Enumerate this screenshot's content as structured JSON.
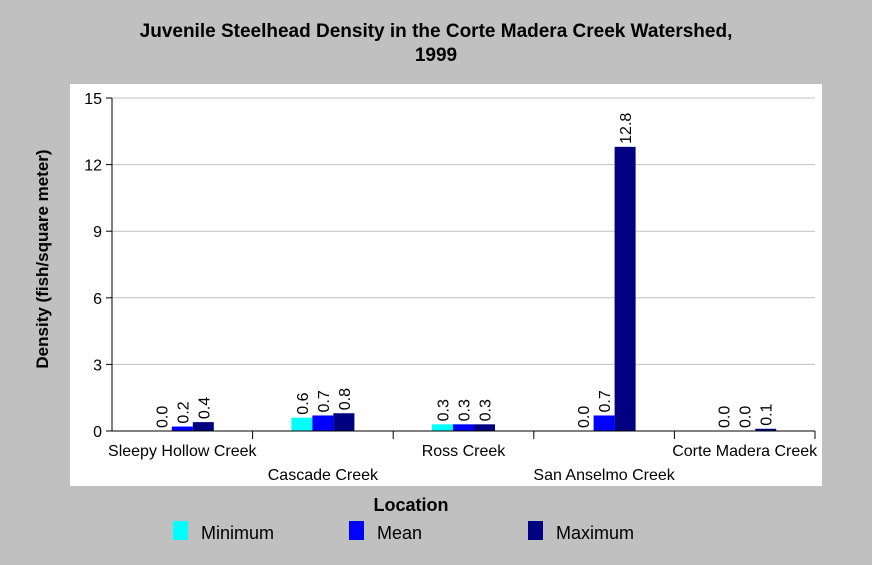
{
  "chart_data": {
    "type": "bar",
    "title": [
      "Juvenile Steelhead Density in the Corte Madera Creek Watershed,",
      "1999"
    ],
    "xlabel": "Location",
    "ylabel": "Density (fish/square meter)",
    "ylim": [
      0,
      15
    ],
    "yticks": [
      0,
      3,
      6,
      9,
      12,
      15
    ],
    "grid": true,
    "legend_position": "bottom",
    "categories": [
      "Sleepy Hollow Creek",
      "Cascade Creek",
      "Ross Creek",
      "San Anselmo Creek",
      "Corte Madera Creek"
    ],
    "series": [
      {
        "name": "Minimum",
        "color": "#00ffff",
        "values": [
          0.0,
          0.6,
          0.3,
          0.0,
          0.0
        ],
        "labels": [
          "0.0",
          "0.6",
          "0.3",
          "0.0",
          "0.0"
        ]
      },
      {
        "name": "Mean",
        "color": "#0000ff",
        "values": [
          0.2,
          0.7,
          0.3,
          0.7,
          0.0
        ],
        "labels": [
          "0.2",
          "0.7",
          "0.3",
          "0.7",
          "0.0"
        ]
      },
      {
        "name": "Maximum",
        "color": "#000080",
        "values": [
          0.4,
          0.8,
          0.3,
          12.8,
          0.1
        ],
        "labels": [
          "0.4",
          "0.8",
          "0.3",
          "12.8",
          "0.1"
        ]
      }
    ]
  }
}
